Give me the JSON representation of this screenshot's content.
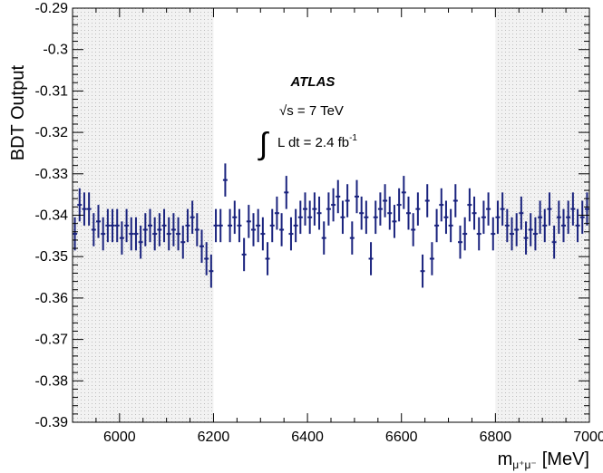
{
  "chart_data": {
    "type": "scatter",
    "title": "",
    "ylabel": "BDT Output",
    "xlabel": "m",
    "xlabel_subscript": "μ⁺μ⁻",
    "xlabel_unit": "[MeV]",
    "xlim": [
      5900,
      7000
    ],
    "ylim": [
      -0.39,
      -0.29
    ],
    "x_ticks": [
      6000,
      6200,
      6400,
      6600,
      6800,
      7000
    ],
    "x_tick_labels": [
      "6000",
      "6200",
      "6400",
      "6600",
      "6800",
      "7000"
    ],
    "y_ticks": [
      -0.29,
      -0.3,
      -0.31,
      -0.32,
      -0.33,
      -0.34,
      -0.35,
      -0.36,
      -0.37,
      -0.38,
      -0.39
    ],
    "y_tick_labels": [
      "-0.29",
      "-0.3",
      "-0.31",
      "-0.32",
      "-0.33",
      "-0.34",
      "-0.35",
      "-0.36",
      "-0.37",
      "-0.38",
      "-0.39"
    ],
    "shaded_regions": [
      [
        5900,
        6200
      ],
      [
        6800,
        7000
      ]
    ],
    "annotations": {
      "experiment": "ATLAS",
      "energy": "√s = 7 TeV",
      "lumi_prefix": "L dt = 2.4 fb",
      "lumi_exp": "-1"
    },
    "marker_color": "#1a237e",
    "shade_color": "#d9d9d9",
    "series": [
      {
        "x": [
          5905,
          5915,
          5925,
          5935,
          5945,
          5955,
          5965,
          5975,
          5985,
          5995,
          6005,
          6015,
          6025,
          6035,
          6045,
          6055,
          6065,
          6075,
          6085,
          6095,
          6105,
          6115,
          6125,
          6135,
          6145,
          6155,
          6165,
          6175,
          6185,
          6195,
          6205,
          6215,
          6225,
          6235,
          6245,
          6255,
          6265,
          6275,
          6285,
          6295,
          6305,
          6315,
          6325,
          6335,
          6345,
          6355,
          6365,
          6375,
          6385,
          6395,
          6405,
          6415,
          6425,
          6435,
          6445,
          6455,
          6465,
          6475,
          6485,
          6495,
          6505,
          6515,
          6525,
          6535,
          6545,
          6555,
          6565,
          6575,
          6585,
          6595,
          6605,
          6615,
          6625,
          6635,
          6645,
          6655,
          6665,
          6675,
          6685,
          6695,
          6705,
          6715,
          6725,
          6735,
          6745,
          6755,
          6765,
          6775,
          6785,
          6795,
          6805,
          6815,
          6825,
          6835,
          6845,
          6855,
          6865,
          6875,
          6885,
          6895,
          6905,
          6915,
          6925,
          6935,
          6945,
          6955,
          6965,
          6975,
          6985,
          6995
        ],
        "y": [
          -0.3445,
          -0.3375,
          -0.3385,
          -0.3385,
          -0.3435,
          -0.3415,
          -0.3445,
          -0.3425,
          -0.3425,
          -0.3425,
          -0.3455,
          -0.3425,
          -0.3445,
          -0.3445,
          -0.3465,
          -0.3435,
          -0.3425,
          -0.3445,
          -0.3435,
          -0.3425,
          -0.3445,
          -0.3435,
          -0.3445,
          -0.3465,
          -0.3425,
          -0.3405,
          -0.3435,
          -0.3475,
          -0.3505,
          -0.3535,
          -0.3425,
          -0.3425,
          -0.3315,
          -0.3425,
          -0.3405,
          -0.3425,
          -0.3495,
          -0.3415,
          -0.3435,
          -0.3425,
          -0.3445,
          -0.3505,
          -0.3425,
          -0.3395,
          -0.3435,
          -0.3345,
          -0.3445,
          -0.3425,
          -0.3405,
          -0.3385,
          -0.3405,
          -0.3385,
          -0.3395,
          -0.3455,
          -0.3385,
          -0.3375,
          -0.3355,
          -0.3405,
          -0.3365,
          -0.3455,
          -0.3355,
          -0.3395,
          -0.3405,
          -0.3505,
          -0.3405,
          -0.3385,
          -0.3365,
          -0.3395,
          -0.3415,
          -0.3375,
          -0.3345,
          -0.3395,
          -0.3435,
          -0.3385,
          -0.3535,
          -0.3365,
          -0.3505,
          -0.3425,
          -0.3375,
          -0.3405,
          -0.3425,
          -0.3365,
          -0.3465,
          -0.3445,
          -0.3375,
          -0.3395,
          -0.3445,
          -0.3405,
          -0.3385,
          -0.3445,
          -0.3405,
          -0.3385,
          -0.3425,
          -0.3445,
          -0.3435,
          -0.3395,
          -0.3455,
          -0.3435,
          -0.3445,
          -0.3405,
          -0.3425,
          -0.3385,
          -0.3465,
          -0.3405,
          -0.3425,
          -0.3405,
          -0.3385,
          -0.3425,
          -0.3405,
          -0.3385
        ],
        "yerr": [
          0.004,
          0.004,
          0.004,
          0.004,
          0.004,
          0.004,
          0.004,
          0.004,
          0.004,
          0.004,
          0.004,
          0.004,
          0.004,
          0.004,
          0.004,
          0.004,
          0.004,
          0.004,
          0.004,
          0.004,
          0.004,
          0.004,
          0.004,
          0.004,
          0.004,
          0.004,
          0.004,
          0.004,
          0.004,
          0.004,
          0.004,
          0.004,
          0.004,
          0.004,
          0.004,
          0.004,
          0.004,
          0.004,
          0.004,
          0.004,
          0.004,
          0.004,
          0.004,
          0.004,
          0.004,
          0.004,
          0.004,
          0.004,
          0.004,
          0.004,
          0.004,
          0.004,
          0.004,
          0.004,
          0.004,
          0.004,
          0.004,
          0.004,
          0.004,
          0.004,
          0.004,
          0.004,
          0.004,
          0.004,
          0.004,
          0.004,
          0.004,
          0.004,
          0.004,
          0.004,
          0.004,
          0.004,
          0.004,
          0.004,
          0.004,
          0.004,
          0.004,
          0.004,
          0.004,
          0.004,
          0.004,
          0.004,
          0.004,
          0.004,
          0.004,
          0.004,
          0.004,
          0.004,
          0.004,
          0.004,
          0.004,
          0.004,
          0.004,
          0.004,
          0.004,
          0.004,
          0.004,
          0.004,
          0.004,
          0.004,
          0.004,
          0.004,
          0.004,
          0.004,
          0.004,
          0.004,
          0.004,
          0.004,
          0.004,
          0.004
        ]
      }
    ]
  }
}
